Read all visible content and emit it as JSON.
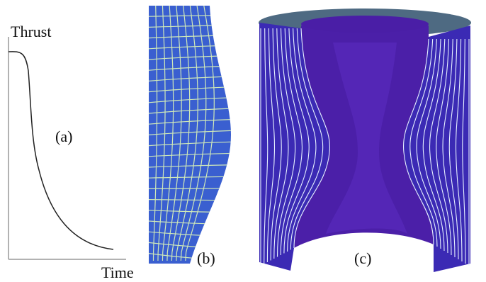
{
  "panels": [
    {
      "label": "(a)",
      "y_axis": "Thrust",
      "x_axis": "Time"
    },
    {
      "label": "(b)"
    },
    {
      "label": "(c)"
    }
  ]
}
